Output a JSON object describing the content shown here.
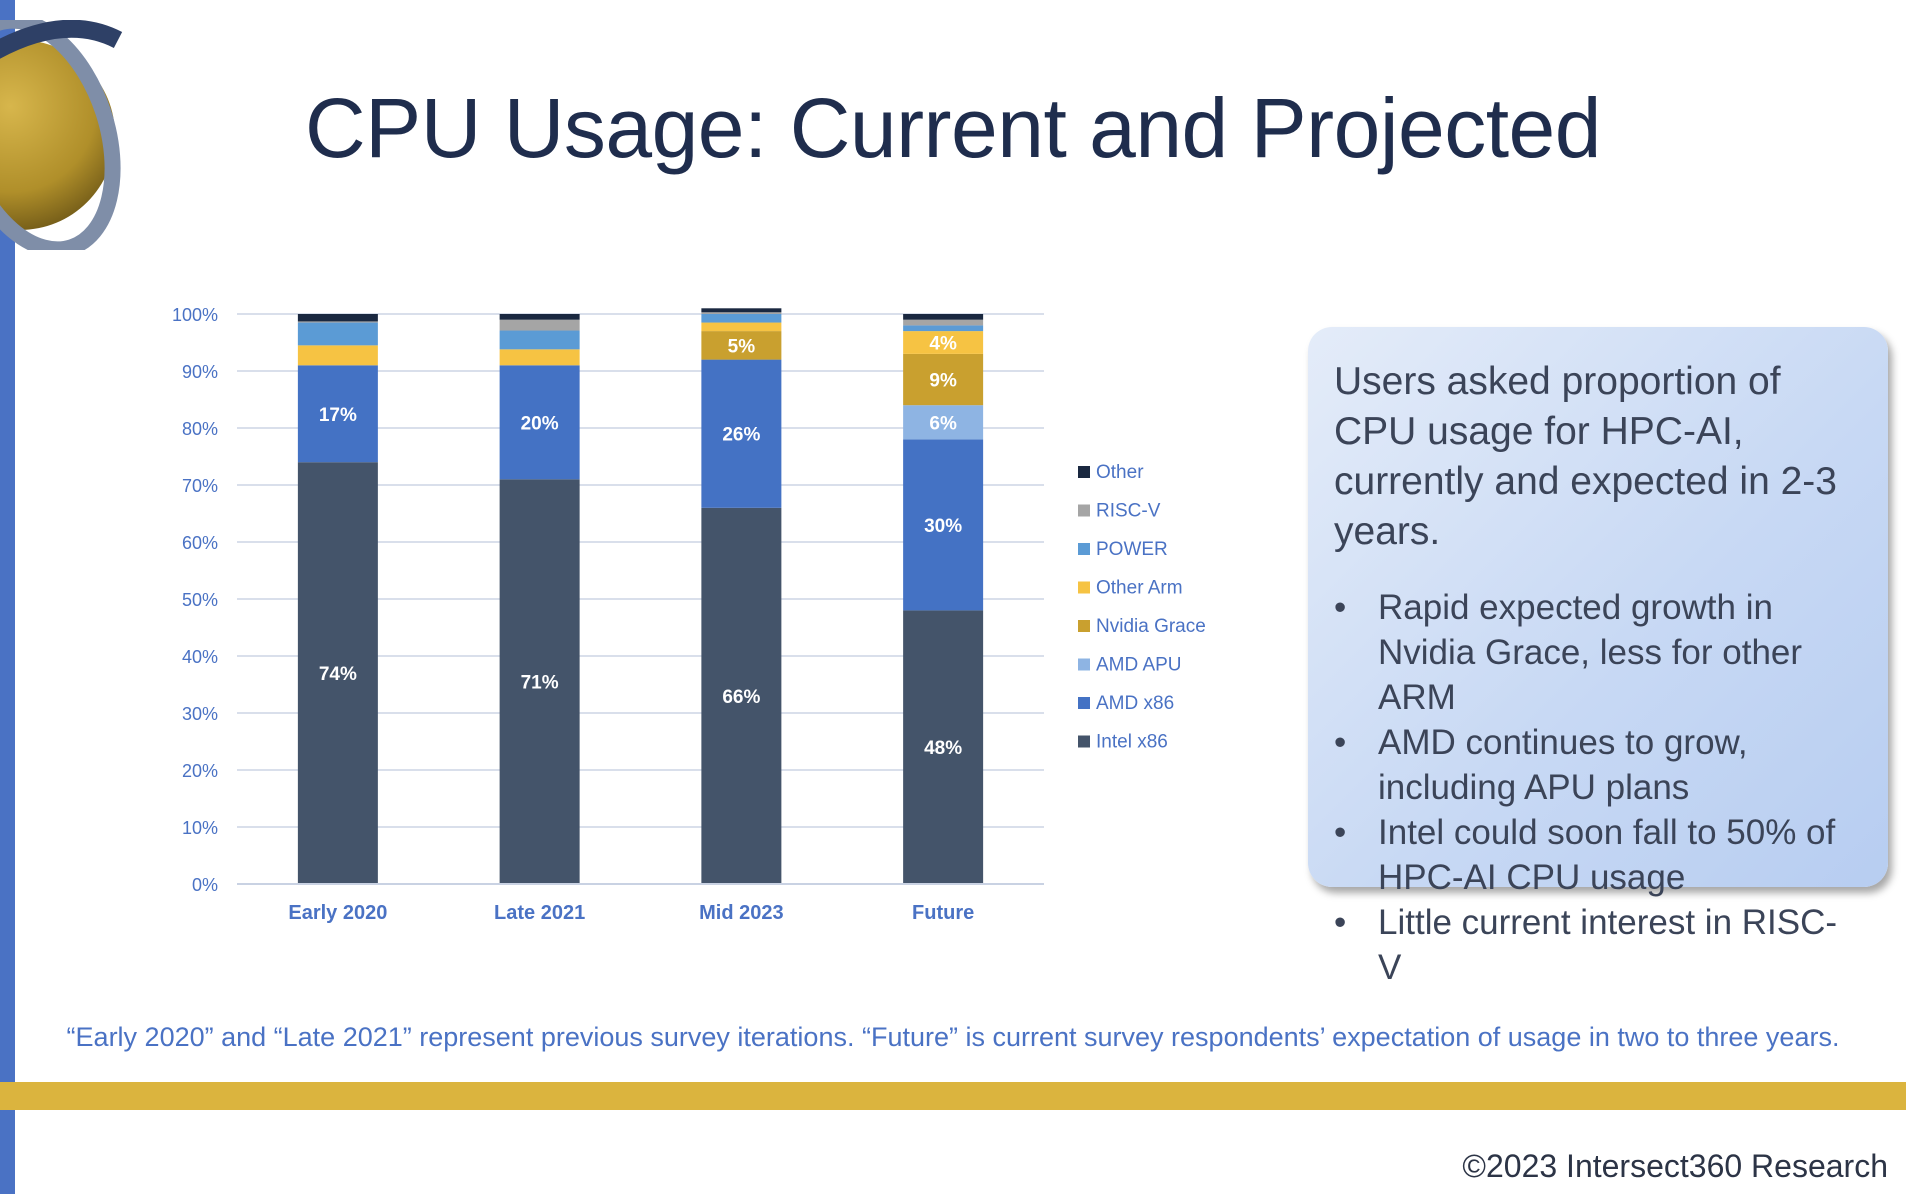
{
  "title": "CPU Usage: Current and Projected",
  "chart_data": {
    "type": "bar",
    "stacked": true,
    "categories": [
      "Early 2020",
      "Late 2021",
      "Mid 2023",
      "Future"
    ],
    "ylim": [
      0,
      100
    ],
    "yticks": [
      "0%",
      "10%",
      "20%",
      "30%",
      "40%",
      "50%",
      "60%",
      "70%",
      "80%",
      "90%",
      "100%"
    ],
    "grid": true,
    "legend_position": "right",
    "series": [
      {
        "name": "Intel x86",
        "color": "#44546a",
        "values": [
          74,
          71,
          66,
          48
        ],
        "labels": [
          "74%",
          "71%",
          "66%",
          "48%"
        ]
      },
      {
        "name": "AMD x86",
        "color": "#4472c4",
        "values": [
          17,
          20,
          26,
          30
        ],
        "labels": [
          "17%",
          "20%",
          "26%",
          "30%"
        ]
      },
      {
        "name": "AMD APU",
        "color": "#8eb4e3",
        "values": [
          0,
          0,
          0,
          6
        ],
        "labels": [
          "",
          "",
          "",
          "6%"
        ]
      },
      {
        "name": "Nvidia Grace",
        "color": "#c9a02f",
        "values": [
          0,
          0,
          5,
          9
        ],
        "labels": [
          "",
          "",
          "5%",
          "9%"
        ]
      },
      {
        "name": "Other Arm",
        "color": "#f6c343",
        "values": [
          3.5,
          2.8,
          1.5,
          4
        ],
        "labels": [
          "",
          "",
          "",
          "4%"
        ]
      },
      {
        "name": "POWER",
        "color": "#5b9bd5",
        "values": [
          4,
          3.3,
          1.5,
          1
        ],
        "labels": [
          "",
          "",
          "",
          ""
        ]
      },
      {
        "name": "RISC-V",
        "color": "#a5a5a5",
        "values": [
          0.2,
          1.9,
          0.3,
          1
        ],
        "labels": [
          "",
          "",
          "",
          ""
        ]
      },
      {
        "name": "Other",
        "color": "#1a2840",
        "values": [
          1.3,
          1,
          0.7,
          1
        ],
        "labels": [
          "",
          "",
          "",
          ""
        ]
      }
    ]
  },
  "callout": {
    "intro": "Users asked proportion of CPU usage for HPC-AI, currently and expected in 2-3 years.",
    "bullets": [
      "Rapid expected growth in Nvidia Grace, less for other ARM",
      "AMD continues to grow, including APU plans",
      "Intel could soon fall to 50% of HPC-AI CPU usage",
      "Little current interest in RISC-V"
    ]
  },
  "footnote": "“Early 2020” and “Late 2021” represent previous survey iterations. “Future” is current survey respondents’ expectation of usage in two to three years.",
  "copyright": "©2023 Intersect360 Research",
  "colors": {
    "accent_blue": "#4a72c4",
    "gold": "#dbb43e",
    "title": "#1f2d4d"
  }
}
